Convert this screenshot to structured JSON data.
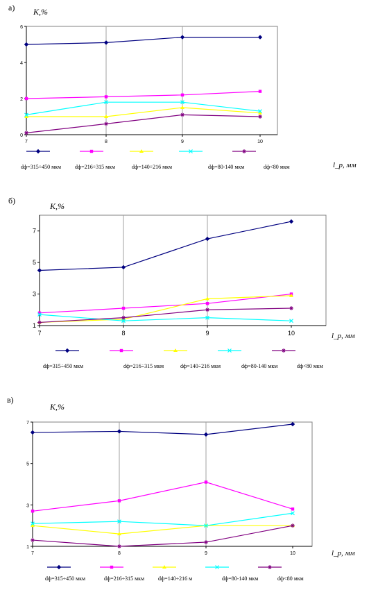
{
  "chart_data": [
    {
      "type": "line",
      "panel_label": "а)",
      "ylabel": "K,%",
      "xlabel": "l_p, мм",
      "categories": [
        "7",
        "8",
        "9",
        "10"
      ],
      "yticks": [
        "0",
        "2",
        "4",
        "6"
      ],
      "ylim": [
        0,
        6
      ],
      "grid": "vertical",
      "series": [
        {
          "name": "dф=315÷450 мкм",
          "values": [
            5.0,
            5.1,
            5.4,
            5.4
          ],
          "color": "#000080",
          "marker": "diamond"
        },
        {
          "name": "dф=216÷315 мкм",
          "values": [
            2.0,
            2.1,
            2.2,
            2.4
          ],
          "color": "#ff00ff",
          "marker": "square"
        },
        {
          "name": "dф=140÷216 мкм",
          "values": [
            1.0,
            1.0,
            1.5,
            1.2
          ],
          "color": "#ffff00",
          "marker": "triangle"
        },
        {
          "name": "dф=80-140 мкм",
          "values": [
            1.1,
            1.8,
            1.8,
            1.3
          ],
          "color": "#00ffff",
          "marker": "x"
        },
        {
          "name": "dф<80 мкм",
          "values": [
            0.1,
            0.6,
            1.1,
            1.0
          ],
          "color": "#800080",
          "marker": "star"
        }
      ]
    },
    {
      "type": "line",
      "panel_label": "б)",
      "ylabel": "K,%",
      "xlabel": "l_p, мм",
      "categories": [
        "7",
        "8",
        "9",
        "10"
      ],
      "yticks": [
        "1",
        "3",
        "5",
        "7"
      ],
      "ylim": [
        1,
        8
      ],
      "grid": "vertical",
      "series": [
        {
          "name": "dф=315÷450 мкм",
          "values": [
            4.5,
            4.7,
            6.5,
            7.6
          ],
          "color": "#000080",
          "marker": "diamond"
        },
        {
          "name": "dф=216÷315 мкм",
          "values": [
            1.8,
            2.1,
            2.4,
            3.0
          ],
          "color": "#ff00ff",
          "marker": "square"
        },
        {
          "name": "dф=140÷216 мкм",
          "values": [
            1.2,
            1.4,
            2.7,
            2.9
          ],
          "color": "#ffff00",
          "marker": "triangle"
        },
        {
          "name": "dф=80-140 мкм",
          "values": [
            1.7,
            1.3,
            1.5,
            1.3
          ],
          "color": "#00ffff",
          "marker": "x"
        },
        {
          "name": "dф<80 мкм",
          "values": [
            1.2,
            1.5,
            2.0,
            2.1
          ],
          "color": "#800080",
          "marker": "star"
        }
      ]
    },
    {
      "type": "line",
      "panel_label": "в)",
      "ylabel": "K,%",
      "xlabel": "l_p, мм",
      "categories": [
        "7",
        "8",
        "9",
        "10"
      ],
      "yticks": [
        "1",
        "3",
        "5",
        "7"
      ],
      "ylim": [
        1,
        7
      ],
      "grid": "vertical",
      "series": [
        {
          "name": "dф=315÷450 мкм",
          "values": [
            6.5,
            6.55,
            6.4,
            6.9
          ],
          "color": "#000080",
          "marker": "diamond"
        },
        {
          "name": "dф=216÷315 мкм",
          "values": [
            2.7,
            3.2,
            4.1,
            2.8
          ],
          "color": "#ff00ff",
          "marker": "square"
        },
        {
          "name": "dф=140÷216 м",
          "values": [
            2.0,
            1.6,
            2.0,
            2.0
          ],
          "color": "#ffff00",
          "marker": "triangle"
        },
        {
          "name": "dф=80-140 мкм",
          "values": [
            2.1,
            2.2,
            2.0,
            2.6
          ],
          "color": "#00ffff",
          "marker": "x"
        },
        {
          "name": "dф<80 мкм",
          "values": [
            1.3,
            1.0,
            1.2,
            2.0
          ],
          "color": "#800080",
          "marker": "star"
        }
      ]
    }
  ]
}
